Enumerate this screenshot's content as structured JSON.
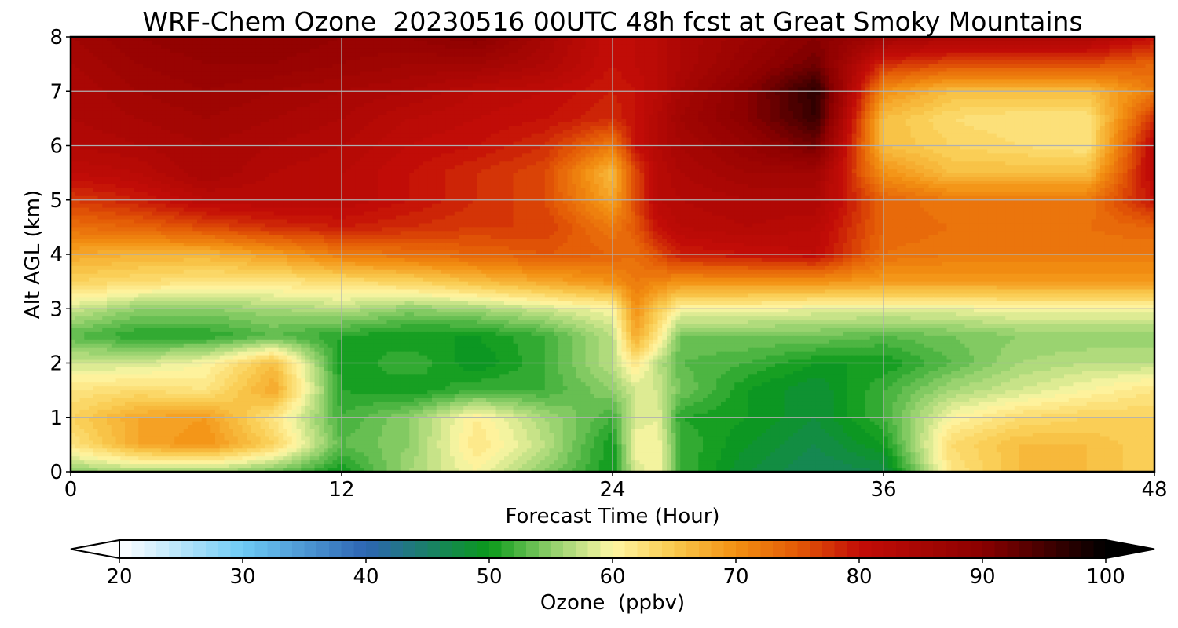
{
  "chart_data": {
    "type": "heatmap",
    "title": "WRF-Chem Ozone  20230516 00UTC 48h fcst at Great Smoky Mountains",
    "xlabel": "Forecast Time (Hour)",
    "ylabel": "Alt AGL (km)",
    "xlim": [
      0,
      48
    ],
    "ylim": [
      0,
      8
    ],
    "xticks": [
      "0",
      "12",
      "24",
      "36",
      "48"
    ],
    "yticks": [
      "0",
      "1",
      "2",
      "3",
      "4",
      "5",
      "6",
      "7",
      "8"
    ],
    "grid": true,
    "x": [
      0,
      3,
      6,
      9,
      12,
      15,
      18,
      21,
      24,
      25,
      26,
      27,
      30,
      33,
      36,
      39,
      42,
      45,
      48
    ],
    "y": [
      0,
      0.5,
      1,
      1.5,
      2,
      2.5,
      3,
      3.5,
      4,
      4.5,
      5,
      5.5,
      6,
      6.5,
      7,
      7.5,
      8
    ],
    "z": [
      [
        55,
        56,
        56,
        54,
        50,
        56,
        60,
        55,
        50,
        58,
        60,
        52,
        48,
        46,
        47,
        62,
        66,
        66,
        64
      ],
      [
        62,
        68,
        70,
        64,
        53,
        55,
        62,
        57,
        50,
        60,
        60,
        52,
        49,
        47,
        50,
        63,
        66,
        66,
        64
      ],
      [
        64,
        68,
        69,
        62,
        52,
        55,
        61,
        56,
        52,
        58,
        59,
        51,
        50,
        48,
        52,
        60,
        63,
        64,
        64
      ],
      [
        62,
        63,
        62,
        68,
        51,
        50,
        52,
        52,
        55,
        58,
        58,
        54,
        50,
        48,
        52,
        56,
        58,
        60,
        62
      ],
      [
        58,
        58,
        60,
        66,
        50,
        52,
        49,
        52,
        57,
        62,
        57,
        53,
        52,
        50,
        50,
        53,
        56,
        57,
        57
      ],
      [
        53,
        51,
        51,
        53,
        51,
        50,
        50,
        52,
        57,
        68,
        62,
        54,
        54,
        54,
        53,
        54,
        55,
        55,
        55
      ],
      [
        58,
        55,
        55,
        56,
        57,
        55,
        56,
        58,
        60,
        70,
        65,
        60,
        60,
        59,
        59,
        59,
        60,
        60,
        60
      ],
      [
        64,
        63,
        62,
        62,
        63,
        64,
        66,
        68,
        70,
        72,
        71,
        70,
        70,
        70,
        69,
        69,
        69,
        69,
        69
      ],
      [
        68,
        67,
        67,
        69,
        72,
        73,
        74,
        75,
        74,
        73,
        76,
        79,
        80,
        81,
        73,
        72,
        72,
        72,
        72
      ],
      [
        73,
        74,
        76,
        78,
        79,
        78,
        77,
        77,
        72,
        75,
        80,
        82,
        83,
        82,
        74,
        73,
        73,
        73,
        74
      ],
      [
        77,
        79,
        82,
        82,
        82,
        80,
        78,
        76,
        68,
        76,
        82,
        83,
        84,
        84,
        74,
        72,
        72,
        72,
        80
      ],
      [
        81,
        82,
        85,
        83,
        82,
        80,
        78,
        76,
        66,
        76,
        82,
        84,
        86,
        86,
        70,
        66,
        66,
        66,
        82
      ],
      [
        83,
        84,
        85,
        84,
        83,
        81,
        80,
        78,
        72,
        80,
        83,
        85,
        88,
        92,
        66,
        64,
        63,
        62,
        82
      ],
      [
        84,
        85,
        86,
        85,
        84,
        82,
        81,
        80,
        78,
        80,
        83,
        86,
        90,
        96,
        66,
        63,
        62,
        62,
        78
      ],
      [
        84,
        86,
        87,
        86,
        85,
        84,
        82,
        81,
        79,
        80,
        82,
        85,
        90,
        97,
        70,
        66,
        66,
        66,
        72
      ],
      [
        85,
        87,
        88,
        88,
        87,
        86,
        86,
        84,
        80,
        81,
        82,
        84,
        88,
        92,
        78,
        76,
        76,
        76,
        74
      ],
      [
        86,
        88,
        89,
        89,
        88,
        88,
        90,
        85,
        80,
        81,
        82,
        84,
        87,
        90,
        86,
        84,
        84,
        84,
        80
      ]
    ],
    "colorbar": {
      "label": "Ozone  (ppbv)",
      "ticks": [
        "20",
        "30",
        "40",
        "50",
        "60",
        "70",
        "80",
        "90",
        "100"
      ],
      "range": [
        20,
        100
      ],
      "extend": "both"
    }
  },
  "colormap": [
    [
      20,
      "#ffffff"
    ],
    [
      30,
      "#6ecbf5"
    ],
    [
      40,
      "#2d65b3"
    ],
    [
      45,
      "#1a8069"
    ],
    [
      50,
      "#0a9a1a"
    ],
    [
      55,
      "#8fcf6a"
    ],
    [
      60,
      "#fef7a5"
    ],
    [
      65,
      "#f9c94d"
    ],
    [
      70,
      "#f39012"
    ],
    [
      75,
      "#e35a06"
    ],
    [
      80,
      "#c40d07"
    ],
    [
      90,
      "#8a0000"
    ],
    [
      100,
      "#000000"
    ]
  ],
  "colors": {
    "grid": "#b0b0b0",
    "axes": "#000000",
    "background": "#ffffff"
  }
}
